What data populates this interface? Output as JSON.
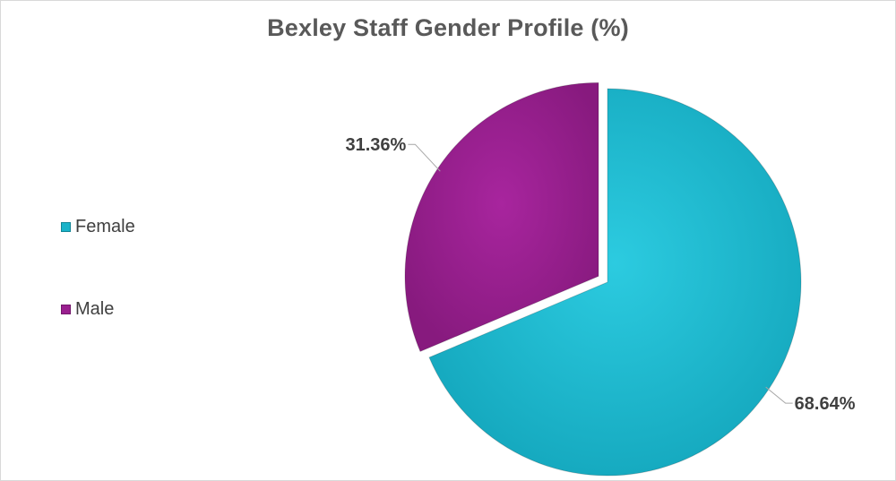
{
  "chart_data": {
    "type": "pie",
    "title": "Bexley Staff Gender Profile (%)",
    "categories": [
      "Female",
      "Male"
    ],
    "values": [
      68.64,
      31.36
    ],
    "data_labels": [
      "68.64%",
      "31.36%"
    ],
    "colors": [
      "#1ab3c9",
      "#9a1f8f"
    ],
    "exploded": "Male",
    "start_angle": "12 o'clock, clockwise",
    "legend_position": "left"
  }
}
